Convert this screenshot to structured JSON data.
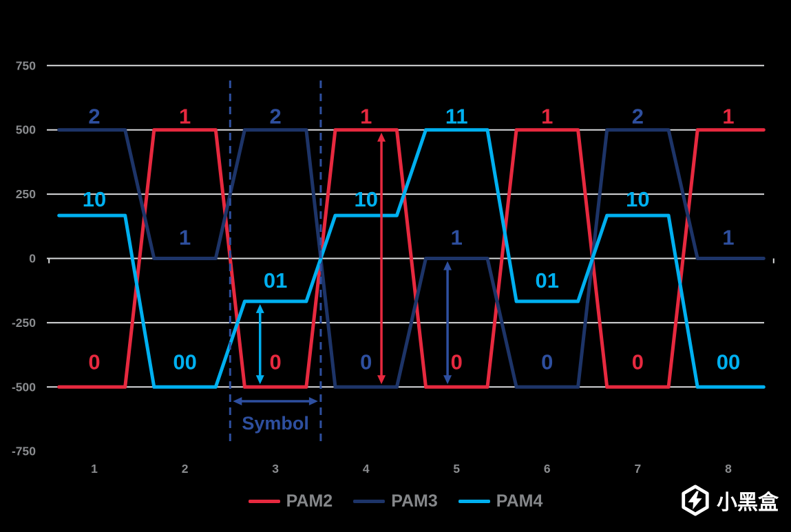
{
  "background": "#000000",
  "axis": {
    "y_tick_labels": [
      "750",
      "500",
      "250",
      "0",
      "-250",
      "-500",
      "-750"
    ],
    "y_tick_values": [
      750,
      500,
      250,
      0,
      -250,
      -500,
      -750
    ],
    "gridline_values": [
      750,
      500,
      250,
      0,
      -250,
      -500
    ],
    "x_labels": [
      "1",
      "2",
      "3",
      "4",
      "5",
      "6",
      "7",
      "8"
    ],
    "label_color": "#8a8c8f",
    "gridline_color": "#d9dbdd"
  },
  "chart_data": {
    "type": "line",
    "title": "",
    "x": [
      1,
      2,
      3,
      4,
      5,
      6,
      7,
      8
    ],
    "xlim": [
      0.5,
      8.5
    ],
    "ylim": [
      -750,
      750
    ],
    "legend_position": "bottom",
    "grid": true,
    "series": [
      {
        "name": "PAM2",
        "color": "#e7293f",
        "levels": [
          -500,
          500,
          -500,
          500,
          -500,
          500,
          -500,
          500
        ],
        "labels": [
          "0",
          "1",
          "0",
          "1",
          "0",
          "1",
          "0",
          "1"
        ]
      },
      {
        "name": "PAM3",
        "color": "#1d3468",
        "label_color": "#2e4f9f",
        "levels": [
          500,
          0,
          500,
          -500,
          0,
          -500,
          500,
          0
        ],
        "labels": [
          "2",
          "1",
          "2",
          "0",
          "1",
          "0",
          "2",
          "1"
        ]
      },
      {
        "name": "PAM4",
        "color": "#00b0f0",
        "levels": [
          167,
          -500,
          -167,
          167,
          500,
          -167,
          167,
          -500
        ],
        "labels": [
          "10",
          "00",
          "01",
          "10",
          "11",
          "01",
          "10",
          "00"
        ]
      }
    ],
    "annotations": {
      "symbol_marker": {
        "label": "Symbol",
        "x_start": 2.5,
        "x_end": 3.5,
        "color": "#2e4f9f"
      },
      "amplitude_arrows": [
        {
          "series": "PAM4",
          "x": 2.83,
          "from": -167,
          "to": -500,
          "color": "#00b0f0"
        },
        {
          "series": "PAM2",
          "x": 4.17,
          "from": 500,
          "to": -500,
          "color": "#e7293f"
        },
        {
          "series": "PAM3",
          "x": 4.9,
          "from": 0,
          "to": -500,
          "color": "#2e4f9f"
        }
      ]
    }
  },
  "logo": {
    "text": "小黑盒",
    "color": "#ffffff"
  }
}
